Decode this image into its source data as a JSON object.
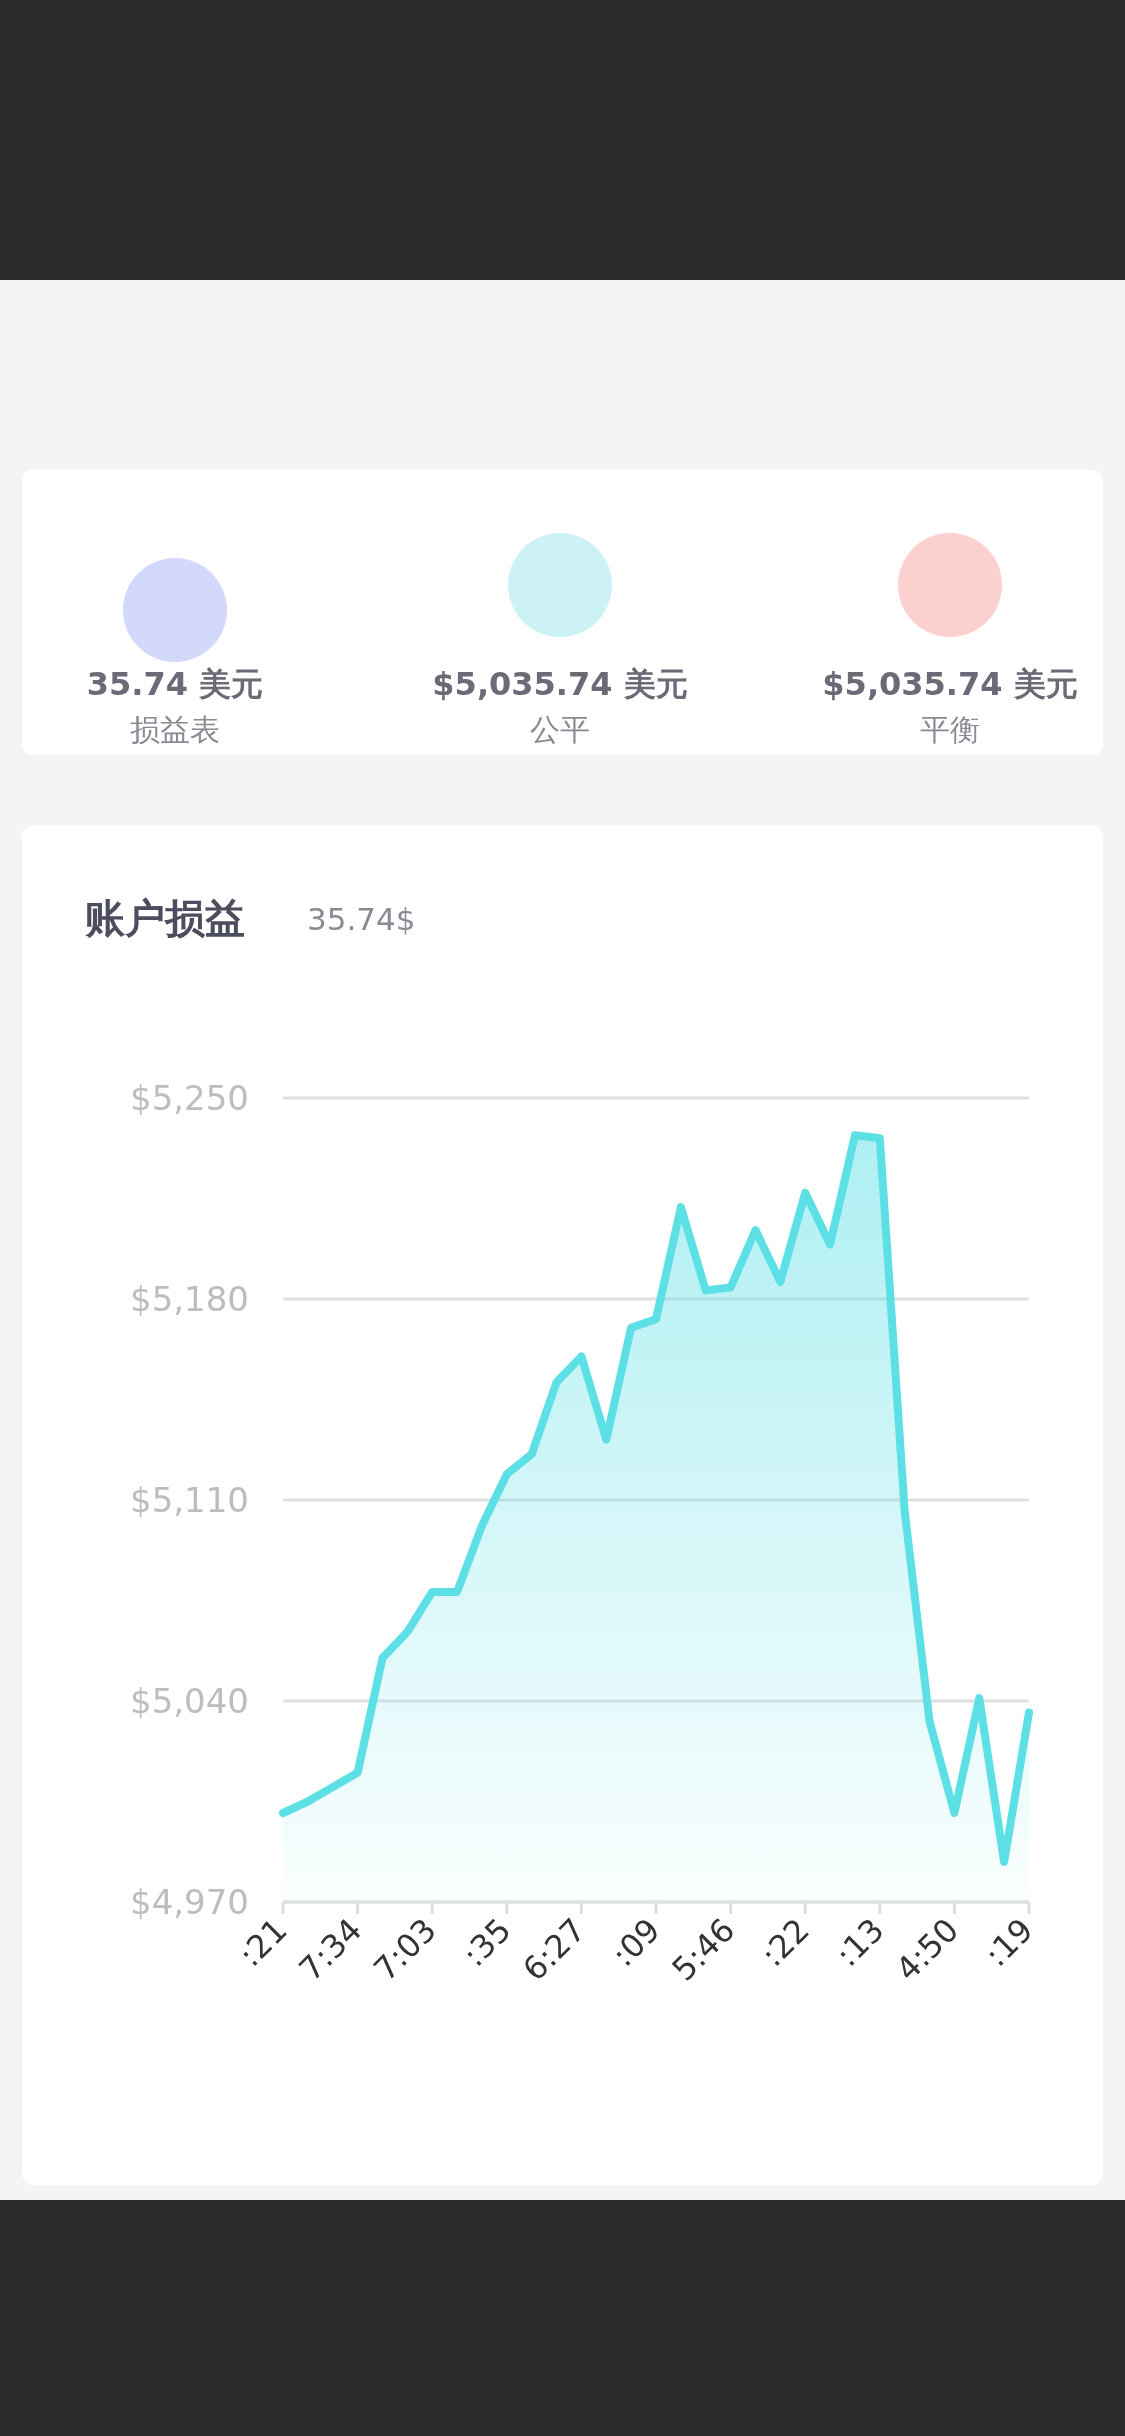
{
  "chart_data": [
    {
      "type": "other",
      "annotations": [
        "35.74 美元",
        "损益表",
        "$5,035.74 美元",
        "公平",
        "$5,035.74 美元",
        "平衡"
      ]
    },
    {
      "type": "area",
      "title": "账户损益",
      "subtitle": "35.74$",
      "color": "#5ddfe6",
      "grid": "y",
      "ylim": [
        4970,
        5250
      ],
      "yticks": [
        {
          "value": 4970,
          "label": "$4,970"
        },
        {
          "value": 5040,
          "label": "$5,040"
        },
        {
          "value": 5110,
          "label": "$5,110"
        },
        {
          "value": 5180,
          "label": "$5,180"
        },
        {
          "value": 5250,
          "label": "$5,250"
        }
      ],
      "categories": [
        ":21",
        null,
        null,
        "7:34",
        null,
        null,
        "7:03",
        null,
        null,
        ":35",
        null,
        null,
        "6:27",
        null,
        null,
        ":09",
        null,
        null,
        "5:46",
        null,
        null,
        ":22",
        null,
        null,
        ":13",
        null,
        null,
        "4:50",
        null,
        null,
        ":19"
      ],
      "values": [
        5001,
        5005,
        5010,
        5015,
        5055,
        5064,
        5078,
        5078,
        5101,
        5119,
        5126,
        5151,
        5160,
        5131,
        5170,
        5173,
        5212,
        5183,
        5184,
        5204,
        5186,
        5217,
        5199,
        5237,
        5236,
        5106,
        5033,
        5001,
        5041,
        4984,
        5036
      ]
    }
  ]
}
